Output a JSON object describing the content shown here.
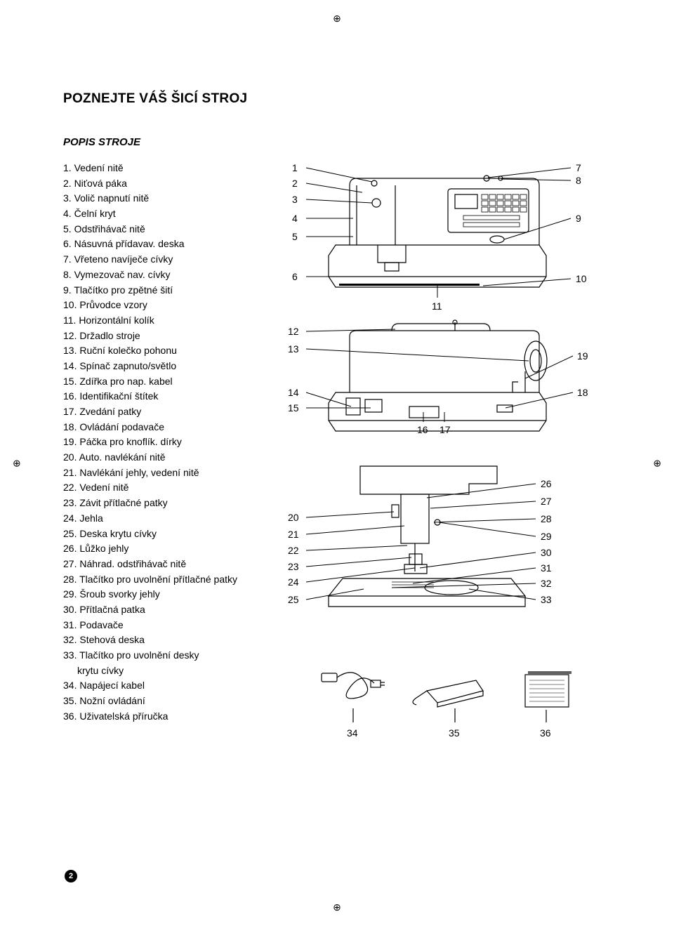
{
  "page_number": "2",
  "title": "POZNEJTE VÁŠ ŠICÍ STROJ",
  "subtitle": "POPIS STROJE",
  "parts": [
    {
      "n": "1",
      "t": "Vedení nitě"
    },
    {
      "n": "2",
      "t": "Niťová páka"
    },
    {
      "n": "3",
      "t": "Volič napnutí nitě"
    },
    {
      "n": "4",
      "t": "Čelní kryt"
    },
    {
      "n": "5",
      "t": "Odstřihávač nitě"
    },
    {
      "n": "6",
      "t": "Násuvná přídavav. deska"
    },
    {
      "n": "7",
      "t": "Vřeteno navíječe cívky"
    },
    {
      "n": "8",
      "t": "Vymezovač nav. cívky"
    },
    {
      "n": "9",
      "t": "Tlačítko pro zpětné šití"
    },
    {
      "n": "10",
      "t": "Průvodce vzory"
    },
    {
      "n": "11",
      "t": "Horizontální kolík"
    },
    {
      "n": "12",
      "t": "Držadlo stroje"
    },
    {
      "n": "13",
      "t": "Ruční kolečko pohonu"
    },
    {
      "n": "14",
      "t": "Spínač zapnuto/světlo"
    },
    {
      "n": "15",
      "t": "Zdířka pro nap. kabel"
    },
    {
      "n": "16",
      "t": "Identifikační štítek"
    },
    {
      "n": "17",
      "t": "Zvedání patky"
    },
    {
      "n": "18",
      "t": "Ovládání podavače"
    },
    {
      "n": "19",
      "t": "Páčka pro knoflík. dírky"
    },
    {
      "n": "20",
      "t": "Auto. navlékání nitě"
    },
    {
      "n": "21",
      "t": "Navlékání jehly, vedení nitě"
    },
    {
      "n": "22",
      "t": "Vedení nitě"
    },
    {
      "n": "23",
      "t": "Závit přítlačné patky"
    },
    {
      "n": "24",
      "t": "Jehla"
    },
    {
      "n": "25",
      "t": "Deska krytu cívky"
    },
    {
      "n": "26",
      "t": "Lůžko jehly"
    },
    {
      "n": "27",
      "t": "Náhrad. odstřihávač nitě"
    },
    {
      "n": "28",
      "t": "Tlačítko pro uvolnění přítlačné patky",
      "wrap": true
    },
    {
      "n": "29",
      "t": "Šroub svorky jehly"
    },
    {
      "n": "30",
      "t": "Přítlačná patka"
    },
    {
      "n": "31",
      "t": "Podavače"
    },
    {
      "n": "32",
      "t": "Stehová deska"
    },
    {
      "n": "33",
      "t": "Tlačítko pro uvolnění desky krytu cívky",
      "wrap": true,
      "indent": true
    },
    {
      "n": "34",
      "t": "Napájecí kabel"
    },
    {
      "n": "35",
      "t": "Nožní ovládání"
    },
    {
      "n": "36",
      "t": "Uživatelská příručka"
    }
  ],
  "diagram": {
    "left_labels_1": [
      "1",
      "2",
      "3",
      "4",
      "5",
      "6"
    ],
    "right_labels_1": [
      "7",
      "8",
      "9",
      "10"
    ],
    "mid_label_1": "11",
    "left_labels_2": [
      "12",
      "13",
      "14",
      "15"
    ],
    "right_labels_2": [
      "19",
      "18"
    ],
    "mid_labels_2": [
      "16",
      "17"
    ],
    "left_labels_3": [
      "20",
      "21",
      "22",
      "23",
      "24",
      "25"
    ],
    "right_labels_3": [
      "26",
      "27",
      "28",
      "29",
      "30",
      "31",
      "32",
      "33"
    ],
    "bottom_labels": [
      "34",
      "35",
      "36"
    ]
  },
  "colors": {
    "text": "#000000",
    "bg": "#ffffff",
    "line": "#000000"
  }
}
